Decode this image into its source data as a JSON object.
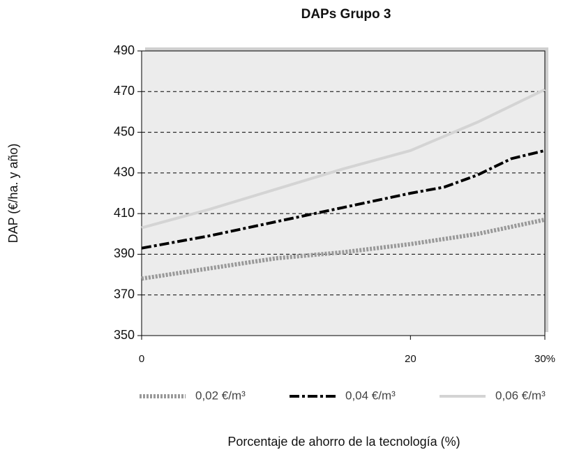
{
  "chart_data": {
    "type": "line",
    "title": "DAPs Grupo 3",
    "x_label": "Porcentaje de ahorro de la tecnología (%)",
    "y_label": "DAP (€/ha. y año)",
    "xlim": [
      0,
      30
    ],
    "xticks": [
      0,
      20,
      {
        "value": 30,
        "label": "30%"
      }
    ],
    "ylim": [
      350,
      490
    ],
    "yticks": [
      350,
      370,
      390,
      410,
      430,
      450,
      470,
      490
    ],
    "grid": true,
    "legend": "bottom",
    "series": [
      {
        "name": "0,02 €/m³",
        "color": "#999999",
        "style": "dotted",
        "x": [
          0,
          5,
          10,
          15,
          20,
          25,
          30
        ],
        "values": [
          378,
          383,
          388,
          391,
          395,
          400,
          407
        ]
      },
      {
        "name": "0,04 €/m³",
        "color": "#000000",
        "style": "dashdot",
        "x": [
          0,
          5,
          10,
          15,
          20,
          22.5,
          25,
          27.5,
          30
        ],
        "values": [
          393,
          399,
          406,
          413,
          420,
          423,
          429,
          437,
          441
        ]
      },
      {
        "name": "0,06 €/m³",
        "color": "#d4d4d4",
        "style": "solid",
        "x": [
          0,
          5,
          10,
          15,
          20,
          25,
          27.5,
          30
        ],
        "values": [
          403,
          412,
          422,
          432,
          441,
          455,
          463,
          471
        ]
      }
    ]
  }
}
